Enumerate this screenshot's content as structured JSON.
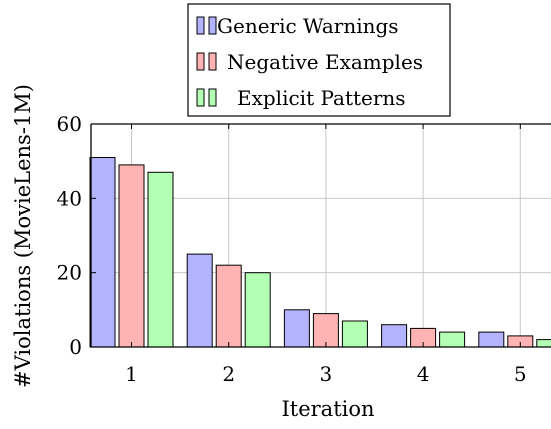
{
  "chart_data": {
    "type": "bar",
    "title": "",
    "xlabel": "Iteration",
    "ylabel": "#Violations (MovieLens-1M)",
    "categories": [
      "1",
      "2",
      "3",
      "4",
      "5"
    ],
    "series": [
      {
        "name": "Generic Warnings",
        "values": [
          51,
          25,
          10,
          6,
          4
        ],
        "color": "#b3b3ff"
      },
      {
        "name": "Negative Examples",
        "values": [
          49,
          22,
          9,
          5,
          3
        ],
        "color": "#ffb3b3"
      },
      {
        "name": "Explicit Patterns",
        "values": [
          47,
          20,
          7,
          4,
          2
        ],
        "color": "#b3ffb3"
      }
    ],
    "ylim": [
      0,
      60
    ],
    "yticks": [
      0,
      20,
      40,
      60
    ],
    "grid": true,
    "legend_position": "top-center"
  }
}
